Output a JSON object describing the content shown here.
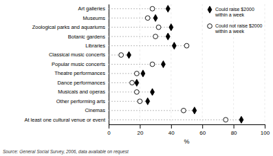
{
  "chart_data": {
    "type": "dot",
    "categories": [
      "Art galleries",
      "Museums",
      "Zoological parks and aquariums",
      "Botanic gardens",
      "Libraries",
      "Classical music concerts",
      "Popular music concerts",
      "Theatre performances",
      "Dance performances",
      "Musicals and operas",
      "Other performing arts",
      "Cinemas",
      "At least one cultural venue or event"
    ],
    "series": [
      {
        "name": "Could raise $2000\nwithin a week",
        "color": "#000000",
        "marker": "diamond",
        "values": [
          38,
          30,
          40,
          38,
          42,
          13,
          35,
          22,
          18,
          28,
          25,
          55,
          85
        ]
      },
      {
        "name": "Could not raise $2000\nwithin a week",
        "color": "#ffffff",
        "marker": "circle",
        "values": [
          28,
          25,
          32,
          30,
          50,
          8,
          28,
          18,
          15,
          18,
          20,
          48,
          75
        ]
      }
    ],
    "orientation": "horizontal",
    "x_label": "%",
    "xlim": [
      0,
      100
    ],
    "xticks": [
      0,
      20,
      40,
      60,
      80,
      100
    ],
    "grid": true,
    "legend": "upper right",
    "source": "Source: General Social Survey, 2006, data available on request"
  }
}
